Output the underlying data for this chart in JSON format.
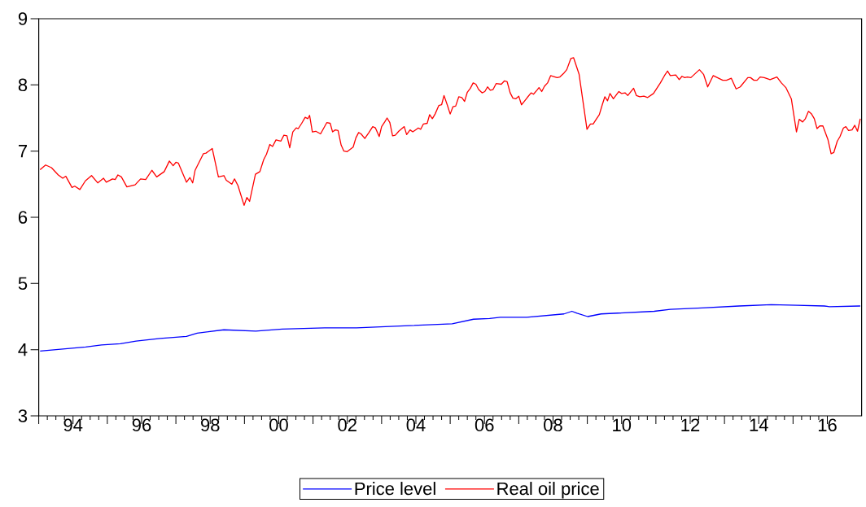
{
  "chart_data": {
    "type": "line",
    "xlim": [
      1993,
      2017
    ],
    "ylim": [
      3,
      9
    ],
    "yticks": [
      3,
      4,
      5,
      6,
      7,
      8,
      9
    ],
    "xticks": [
      {
        "value": 1993,
        "label": null
      },
      {
        "value": 1994,
        "label": null
      },
      {
        "value": 1995,
        "label": null
      },
      {
        "value": 1996,
        "label": null
      },
      {
        "value": 1997,
        "label": null
      },
      {
        "value": 1998,
        "label": null
      },
      {
        "value": 1999,
        "label": null
      },
      {
        "value": 2000,
        "label": null
      },
      {
        "value": 2001,
        "label": null
      },
      {
        "value": 2002,
        "label": null
      },
      {
        "value": 2003,
        "label": null
      },
      {
        "value": 2004,
        "label": null
      },
      {
        "value": 2005,
        "label": null
      },
      {
        "value": 2006,
        "label": null
      },
      {
        "value": 2007,
        "label": null
      },
      {
        "value": 2008,
        "label": null
      },
      {
        "value": 2009,
        "label": null
      },
      {
        "value": 2010,
        "label": null
      },
      {
        "value": 2011,
        "label": null
      },
      {
        "value": 2012,
        "label": null
      },
      {
        "value": 2013,
        "label": null
      },
      {
        "value": 2014,
        "label": null
      },
      {
        "value": 2015,
        "label": null
      },
      {
        "value": 2016,
        "label": null
      },
      {
        "value": 1994,
        "label": "94"
      },
      {
        "value": 1996,
        "label": "96"
      },
      {
        "value": 1998,
        "label": "98"
      },
      {
        "value": 2000,
        "label": "00"
      },
      {
        "value": 2002,
        "label": "02"
      },
      {
        "value": 2004,
        "label": "04"
      },
      {
        "value": 2006,
        "label": "06"
      },
      {
        "value": 2008,
        "label": "08"
      },
      {
        "value": 2010,
        "label": "10"
      },
      {
        "value": 2012,
        "label": "12"
      },
      {
        "value": 2014,
        "label": "14"
      },
      {
        "value": 2016,
        "label": "16"
      }
    ],
    "legend": "bottom",
    "grid": false,
    "series": [
      {
        "name": "Price level",
        "color": "#0000ff",
        "x": [
          1993.04,
          1994.37,
          1994.83,
          1995.38,
          1995.84,
          1996.54,
          1997.31,
          1997.62,
          1998.4,
          1999.33,
          2000.1,
          2001.34,
          2002.27,
          2003.67,
          2005.06,
          2005.68,
          2006.15,
          2006.46,
          2007.23,
          2008.32,
          2008.55,
          2008.7,
          2009.01,
          2009.4,
          2010.95,
          2011.42,
          2012.35,
          2013.43,
          2014.36,
          2015.13,
          2015.91,
          2016.06,
          2016.96
        ],
        "values": [
          3.98,
          4.04,
          4.07,
          4.09,
          4.13,
          4.17,
          4.2,
          4.25,
          4.3,
          4.28,
          4.31,
          4.33,
          4.33,
          4.36,
          4.39,
          4.46,
          4.47,
          4.49,
          4.49,
          4.54,
          4.58,
          4.55,
          4.5,
          4.54,
          4.58,
          4.61,
          4.63,
          4.66,
          4.68,
          4.67,
          4.66,
          4.65,
          4.66
        ]
      },
      {
        "name": "Real oil price",
        "color": "#ff0000",
        "x": [
          1993.04,
          1993.2,
          1993.37,
          1993.57,
          1993.7,
          1993.79,
          1993.97,
          1994.05,
          1994.2,
          1994.36,
          1994.54,
          1994.72,
          1994.89,
          1994.97,
          1995.15,
          1995.23,
          1995.31,
          1995.41,
          1995.57,
          1995.81,
          1995.97,
          1996.12,
          1996.3,
          1996.44,
          1996.66,
          1996.81,
          1996.92,
          1997.0,
          1997.07,
          1997.31,
          1997.41,
          1997.49,
          1997.56,
          1997.8,
          1997.88,
          1998.06,
          1998.24,
          1998.4,
          1998.47,
          1998.63,
          1998.71,
          1998.81,
          1998.99,
          1999.07,
          1999.15,
          1999.32,
          1999.45,
          1999.56,
          1999.64,
          1999.74,
          1999.82,
          1999.92,
          2000.06,
          2000.15,
          2000.24,
          2000.32,
          2000.41,
          2000.51,
          2000.57,
          2000.67,
          2000.77,
          2000.85,
          2000.9,
          2000.98,
          2001.08,
          2001.22,
          2001.4,
          2001.5,
          2001.57,
          2001.65,
          2001.73,
          2001.82,
          2001.9,
          2001.99,
          2002.17,
          2002.25,
          2002.33,
          2002.4,
          2002.51,
          2002.63,
          2002.74,
          2002.82,
          2002.93,
          2003.0,
          2003.09,
          2003.16,
          2003.24,
          2003.32,
          2003.4,
          2003.5,
          2003.66,
          2003.73,
          2003.83,
          2003.91,
          2004.07,
          2004.14,
          2004.22,
          2004.33,
          2004.4,
          2004.48,
          2004.56,
          2004.67,
          2004.75,
          2004.82,
          2004.92,
          2005.0,
          2005.08,
          2005.16,
          2005.25,
          2005.34,
          2005.42,
          2005.5,
          2005.59,
          2005.67,
          2005.75,
          2005.83,
          2005.93,
          2006.01,
          2006.09,
          2006.17,
          2006.25,
          2006.34,
          2006.49,
          2006.58,
          2006.66,
          2006.75,
          2006.83,
          2006.91,
          2007.0,
          2007.08,
          2007.16,
          2007.25,
          2007.36,
          2007.43,
          2007.53,
          2007.59,
          2007.67,
          2007.75,
          2007.84,
          2007.93,
          2008.0,
          2008.12,
          2008.2,
          2008.32,
          2008.4,
          2008.52,
          2008.6,
          2008.76,
          2008.99,
          2009.09,
          2009.17,
          2009.27,
          2009.35,
          2009.43,
          2009.51,
          2009.59,
          2009.66,
          2009.76,
          2009.92,
          2010.0,
          2010.1,
          2010.18,
          2010.35,
          2010.43,
          2010.53,
          2010.65,
          2010.76,
          2010.93,
          2011.13,
          2011.25,
          2011.34,
          2011.42,
          2011.58,
          2011.68,
          2011.76,
          2011.84,
          2011.92,
          2012.02,
          2012.27,
          2012.39,
          2012.51,
          2012.67,
          2012.95,
          2013.06,
          2013.2,
          2013.34,
          2013.46,
          2013.68,
          2013.76,
          2013.86,
          2013.95,
          2014.04,
          2014.16,
          2014.33,
          2014.53,
          2014.66,
          2014.79,
          2014.95,
          2015.1,
          2015.18,
          2015.28,
          2015.36,
          2015.45,
          2015.54,
          2015.62,
          2015.7,
          2015.78,
          2015.87,
          2016.02,
          2016.11,
          2016.19,
          2016.29,
          2016.37,
          2016.47,
          2016.54,
          2016.62,
          2016.72,
          2016.8,
          2016.88,
          2016.96
        ],
        "values": [
          6.72,
          6.79,
          6.75,
          6.64,
          6.59,
          6.62,
          6.45,
          6.47,
          6.42,
          6.55,
          6.63,
          6.52,
          6.59,
          6.53,
          6.58,
          6.57,
          6.64,
          6.61,
          6.46,
          6.49,
          6.58,
          6.57,
          6.71,
          6.61,
          6.69,
          6.85,
          6.78,
          6.83,
          6.82,
          6.53,
          6.6,
          6.52,
          6.71,
          6.96,
          6.97,
          7.04,
          6.61,
          6.63,
          6.56,
          6.5,
          6.58,
          6.48,
          6.18,
          6.3,
          6.24,
          6.65,
          6.69,
          6.87,
          6.95,
          7.1,
          7.07,
          7.17,
          7.15,
          7.24,
          7.23,
          7.05,
          7.29,
          7.35,
          7.34,
          7.42,
          7.51,
          7.49,
          7.54,
          7.29,
          7.3,
          7.26,
          7.43,
          7.42,
          7.29,
          7.32,
          7.31,
          7.09,
          7.0,
          6.99,
          7.06,
          7.2,
          7.28,
          7.26,
          7.19,
          7.28,
          7.37,
          7.35,
          7.22,
          7.37,
          7.44,
          7.5,
          7.43,
          7.23,
          7.24,
          7.3,
          7.37,
          7.25,
          7.32,
          7.29,
          7.35,
          7.33,
          7.41,
          7.42,
          7.55,
          7.49,
          7.56,
          7.69,
          7.7,
          7.84,
          7.69,
          7.56,
          7.67,
          7.68,
          7.82,
          7.81,
          7.75,
          7.89,
          7.95,
          8.03,
          8.01,
          7.93,
          7.88,
          7.9,
          7.97,
          7.92,
          7.93,
          8.02,
          8.01,
          8.06,
          8.05,
          7.88,
          7.8,
          7.79,
          7.83,
          7.7,
          7.75,
          7.81,
          7.88,
          7.86,
          7.92,
          7.96,
          7.9,
          7.98,
          8.03,
          8.14,
          8.13,
          8.11,
          8.12,
          8.18,
          8.23,
          8.4,
          8.41,
          8.16,
          7.33,
          7.41,
          7.41,
          7.49,
          7.55,
          7.69,
          7.82,
          7.76,
          7.87,
          7.79,
          7.9,
          7.87,
          7.88,
          7.84,
          7.95,
          7.84,
          7.82,
          7.83,
          7.81,
          7.87,
          8.03,
          8.14,
          8.21,
          8.14,
          8.15,
          8.08,
          8.13,
          8.11,
          8.12,
          8.11,
          8.23,
          8.16,
          7.97,
          8.14,
          8.07,
          8.07,
          8.1,
          7.94,
          7.97,
          8.11,
          8.11,
          8.07,
          8.07,
          8.12,
          8.11,
          8.08,
          8.12,
          8.03,
          7.96,
          7.79,
          7.29,
          7.48,
          7.44,
          7.49,
          7.6,
          7.56,
          7.49,
          7.34,
          7.38,
          7.38,
          7.17,
          6.96,
          6.98,
          7.15,
          7.22,
          7.35,
          7.37,
          7.31,
          7.32,
          7.39,
          7.3,
          7.49
        ]
      }
    ]
  }
}
